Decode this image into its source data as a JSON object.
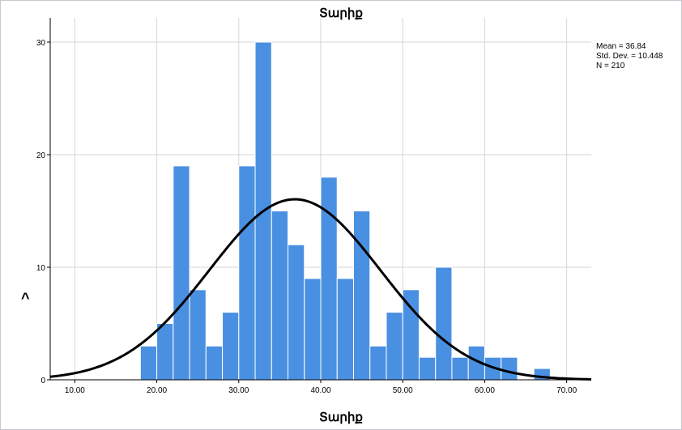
{
  "chart_data": {
    "type": "bar",
    "title": "Տարիք",
    "xlabel": "Տարիք",
    "ylabel": "^",
    "xlim": [
      7,
      73
    ],
    "ylim": [
      0,
      30
    ],
    "x_ticks": [
      "10.00",
      "20.00",
      "30.00",
      "40.00",
      "50.00",
      "60.00",
      "70.00"
    ],
    "y_ticks": [
      "0",
      "10",
      "20",
      "30"
    ],
    "bin_width": 2,
    "bins": [
      {
        "x": 19,
        "count": 3
      },
      {
        "x": 21,
        "count": 5
      },
      {
        "x": 23,
        "count": 19
      },
      {
        "x": 25,
        "count": 8
      },
      {
        "x": 27,
        "count": 3
      },
      {
        "x": 29,
        "count": 6
      },
      {
        "x": 31,
        "count": 19
      },
      {
        "x": 33,
        "count": 30
      },
      {
        "x": 35,
        "count": 15
      },
      {
        "x": 37,
        "count": 12
      },
      {
        "x": 39,
        "count": 9
      },
      {
        "x": 41,
        "count": 18
      },
      {
        "x": 43,
        "count": 9
      },
      {
        "x": 45,
        "count": 15
      },
      {
        "x": 47,
        "count": 3
      },
      {
        "x": 49,
        "count": 6
      },
      {
        "x": 51,
        "count": 8
      },
      {
        "x": 53,
        "count": 2
      },
      {
        "x": 55,
        "count": 10
      },
      {
        "x": 57,
        "count": 2
      },
      {
        "x": 59,
        "count": 3
      },
      {
        "x": 61,
        "count": 2
      },
      {
        "x": 63,
        "count": 2
      },
      {
        "x": 65,
        "count": 0
      },
      {
        "x": 67,
        "count": 1
      }
    ],
    "normal_curve": {
      "mean": 36.84,
      "sd": 10.448,
      "n": 210
    },
    "grid": true,
    "bar_color": "#4a90e2",
    "curve_color": "#000000"
  },
  "stats": {
    "mean_text": "Mean = 36.84",
    "sd_text": "Std. Dev. = 10.448",
    "n_text": "N = 210"
  }
}
